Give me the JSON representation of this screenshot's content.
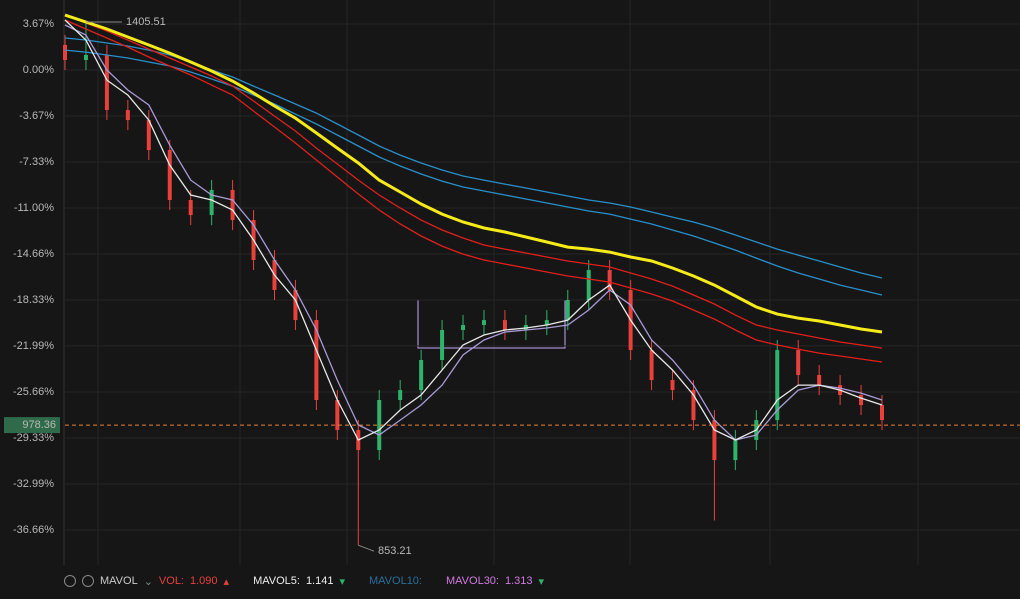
{
  "chart_data": {
    "type": "candlestick",
    "ylim": [
      -39.45,
      5.58
    ],
    "yticks": [
      {
        "value": 3.67,
        "label": "3.67%"
      },
      {
        "value": 0,
        "label": "0.00%"
      },
      {
        "value": -3.67,
        "label": "-3.67%"
      },
      {
        "value": -7.33,
        "label": "-7.33%"
      },
      {
        "value": -11.0,
        "label": "-11.00%"
      },
      {
        "value": -14.66,
        "label": "-14.66%"
      },
      {
        "value": -18.33,
        "label": "-18.33%"
      },
      {
        "value": -21.99,
        "label": "-21.99%"
      },
      {
        "value": -25.66,
        "label": "-25.66%"
      },
      {
        "value": -29.33,
        "label": "-29.33%"
      },
      {
        "value": -32.99,
        "label": "-32.99%"
      },
      {
        "value": -36.66,
        "label": "-36.66%"
      }
    ],
    "up_color": "#2fb36a",
    "down_color": "#e8413c",
    "open": [
      2.0,
      0.8,
      1.2,
      -3.19,
      -3.99,
      -6.38,
      -10.36,
      -11.56,
      -9.56,
      -11.96,
      -15.14,
      -17.53,
      -19.93,
      -26.3,
      -28.69,
      -30.29,
      -26.3,
      -25.51,
      -23.11,
      -20.72,
      -20.32,
      -19.93,
      -20.72,
      -20.32,
      -19.93,
      -18.33,
      -15.94,
      -17.53,
      -22.32,
      -24.71,
      -25.51,
      -27.9,
      -31.09,
      -29.49,
      -27.9,
      -22.32,
      -24.31,
      -25.11,
      -25.9,
      -26.7
    ],
    "high": [
      2.8,
      3.83,
      2.0,
      -2.39,
      -3.19,
      -5.58,
      -9.56,
      -8.76,
      -8.76,
      -11.16,
      -14.34,
      -16.73,
      -19.13,
      -25.5,
      -27.89,
      -25.5,
      -24.71,
      -22.31,
      -19.92,
      -19.52,
      -19.13,
      -19.13,
      -19.52,
      -19.13,
      -17.53,
      -15.14,
      -15.14,
      -16.73,
      -21.52,
      -23.91,
      -24.71,
      -27.1,
      -28.69,
      -27.1,
      -21.52,
      -21.52,
      -23.51,
      -24.31,
      -25.1,
      -25.9
    ],
    "low": [
      0.0,
      0.0,
      -3.99,
      -4.79,
      -7.18,
      -11.16,
      -12.36,
      -12.36,
      -12.76,
      -15.94,
      -18.33,
      -20.73,
      -27.1,
      -29.49,
      -37.87,
      -31.09,
      -27.1,
      -26.31,
      -23.91,
      -21.52,
      -21.12,
      -21.52,
      -21.52,
      -21.12,
      -20.73,
      -19.13,
      -18.33,
      -23.12,
      -25.51,
      -26.31,
      -28.7,
      -35.9,
      -31.89,
      -30.29,
      -28.7,
      -25.11,
      -25.91,
      -26.7,
      -27.5,
      -28.7
    ],
    "close": [
      0.8,
      1.2,
      -3.19,
      -3.99,
      -6.38,
      -10.36,
      -11.56,
      -9.56,
      -11.96,
      -15.14,
      -17.53,
      -19.93,
      -26.3,
      -28.69,
      -30.29,
      -26.3,
      -25.51,
      -23.11,
      -20.72,
      -20.32,
      -19.93,
      -20.72,
      -20.32,
      -19.93,
      -18.33,
      -15.94,
      -17.53,
      -22.32,
      -24.71,
      -25.51,
      -27.9,
      -31.09,
      -29.49,
      -27.9,
      -22.32,
      -24.31,
      -25.11,
      -25.9,
      -26.7,
      -27.9
    ],
    "series": [
      {
        "color": "#2a8fc9",
        "values": [
          2.55,
          2.39,
          2.15,
          1.91,
          1.59,
          1.2,
          0.64,
          0.0,
          -0.56,
          -1.28,
          -1.99,
          -2.71,
          -3.43,
          -4.3,
          -5.18,
          -6.06,
          -6.78,
          -7.41,
          -7.97,
          -8.45,
          -8.77,
          -9.09,
          -9.4,
          -9.72,
          -10.04,
          -10.36,
          -10.6,
          -10.92,
          -11.32,
          -11.72,
          -12.11,
          -12.59,
          -13.15,
          -13.71,
          -14.27,
          -14.75,
          -15.22,
          -15.7,
          -16.18,
          -16.58
        ]
      },
      {
        "color": "#2a8fc9",
        "values": [
          1.59,
          1.43,
          1.2,
          0.96,
          0.64,
          0.32,
          -0.16,
          -0.72,
          -1.28,
          -1.99,
          -2.71,
          -3.51,
          -4.3,
          -5.18,
          -6.06,
          -6.93,
          -7.65,
          -8.29,
          -8.85,
          -9.32,
          -9.64,
          -9.96,
          -10.28,
          -10.6,
          -10.92,
          -11.24,
          -11.48,
          -11.88,
          -12.27,
          -12.75,
          -13.23,
          -13.79,
          -14.35,
          -14.99,
          -15.62,
          -16.18,
          -16.66,
          -17.14,
          -17.53,
          -17.93
        ]
      },
      {
        "color": "#e0201c",
        "values": [
          4.38,
          3.75,
          3.11,
          2.39,
          1.67,
          0.96,
          0.24,
          -0.48,
          -1.28,
          -2.47,
          -3.67,
          -4.86,
          -6.22,
          -7.49,
          -8.77,
          -9.96,
          -11.0,
          -11.96,
          -12.75,
          -13.39,
          -13.95,
          -14.27,
          -14.58,
          -14.9,
          -15.22,
          -15.46,
          -15.7,
          -16.18,
          -16.66,
          -17.22,
          -17.93,
          -18.65,
          -19.53,
          -20.32,
          -20.72,
          -21.04,
          -21.36,
          -21.68,
          -21.92,
          -22.16
        ]
      },
      {
        "color": "#e0201c",
        "values": [
          3.99,
          3.27,
          2.55,
          1.83,
          1.04,
          0.32,
          -0.4,
          -1.2,
          -1.99,
          -3.27,
          -4.54,
          -5.82,
          -7.17,
          -8.53,
          -9.88,
          -11.16,
          -12.27,
          -13.23,
          -14.03,
          -14.67,
          -15.14,
          -15.46,
          -15.78,
          -16.1,
          -16.42,
          -16.66,
          -16.9,
          -17.37,
          -17.85,
          -18.41,
          -19.13,
          -19.85,
          -20.72,
          -21.52,
          -21.92,
          -22.24,
          -22.56,
          -22.79,
          -23.03,
          -23.27
        ]
      },
      {
        "color": "#f5eb1a",
        "bold": true,
        "values": [
          4.38,
          3.83,
          3.27,
          2.63,
          1.99,
          1.35,
          0.64,
          -0.08,
          -0.88,
          -1.83,
          -2.87,
          -3.83,
          -5.02,
          -6.22,
          -7.41,
          -8.77,
          -9.72,
          -10.68,
          -11.48,
          -12.11,
          -12.59,
          -12.91,
          -13.31,
          -13.71,
          -14.11,
          -14.27,
          -14.51,
          -14.9,
          -15.22,
          -15.78,
          -16.42,
          -17.14,
          -18.01,
          -18.89,
          -19.45,
          -19.77,
          -20.0,
          -20.32,
          -20.64,
          -20.88
        ]
      },
      {
        "color": "#a99bd6",
        "values": [
          3.59,
          2.79,
          0.0,
          -1.59,
          -2.79,
          -5.98,
          -8.77,
          -9.96,
          -10.36,
          -12.35,
          -15.14,
          -17.53,
          -20.72,
          -24.71,
          -28.29,
          -29.09,
          -27.9,
          -26.7,
          -25.11,
          -22.71,
          -21.52,
          -20.88,
          -20.72,
          -20.56,
          -20.32,
          -19.13,
          -17.53,
          -18.73,
          -21.52,
          -23.11,
          -25.11,
          -27.9,
          -29.49,
          -29.09,
          -27.1,
          -25.51,
          -25.11,
          -25.35,
          -25.75,
          -26.3
        ]
      },
      {
        "color": "#e8e8e8",
        "values": [
          3.99,
          2.39,
          -0.8,
          -1.99,
          -3.99,
          -7.57,
          -9.96,
          -10.36,
          -11.16,
          -13.55,
          -16.34,
          -18.33,
          -22.32,
          -26.3,
          -29.49,
          -28.69,
          -27.1,
          -25.9,
          -23.91,
          -21.92,
          -21.12,
          -20.72,
          -20.56,
          -20.32,
          -19.93,
          -18.33,
          -17.14,
          -19.93,
          -22.32,
          -23.91,
          -25.9,
          -28.69,
          -29.49,
          -28.69,
          -26.3,
          -25.11,
          -25.11,
          -25.51,
          -26.15,
          -26.7
        ]
      }
    ],
    "high_label": {
      "value": 3.83,
      "label": "1405.51"
    },
    "low_label": {
      "value": -37.87,
      "label": "853.21"
    },
    "current_price": {
      "value": -28.3,
      "label": "978.36"
    },
    "indicator": {
      "name": "MAVOL",
      "vol_label": "VOL:",
      "vol": "1.090",
      "ma5_label": "MAVOL5:",
      "ma5": "1.141",
      "ma10_label": "MAVOL10:",
      "ma30_label": "MAVOL30:",
      "ma30": "1.313"
    }
  }
}
